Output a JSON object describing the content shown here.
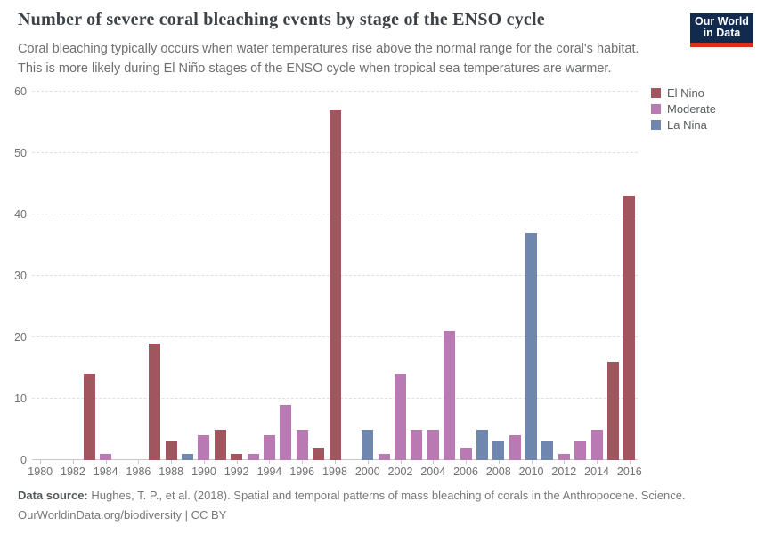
{
  "header": {
    "title": "Number of severe coral bleaching events by stage of the ENSO cycle",
    "subtitle_line1": "Coral bleaching typically occurs when water temperatures rise above the normal range for the coral's habitat.",
    "subtitle_line2": "This is more likely during El Niño stages of the ENSO cycle when tropical sea temperatures are warmer.",
    "logo": {
      "line1": "Our World",
      "line2": "in Data",
      "bg_color": "#122a4e",
      "stripe_color": "#dc2d20"
    }
  },
  "chart_data": {
    "type": "bar",
    "title": "Number of severe coral bleaching events by stage of the ENSO cycle",
    "xlabel": "",
    "ylabel": "",
    "ylim": [
      0,
      60
    ],
    "yticks": [
      0,
      10,
      20,
      30,
      40,
      50,
      60
    ],
    "xticks": [
      1980,
      1982,
      1984,
      1986,
      1988,
      1990,
      1992,
      1994,
      1996,
      1998,
      2000,
      2002,
      2004,
      2006,
      2008,
      2010,
      2012,
      2014,
      2016
    ],
    "grid": "dashed-horizontal",
    "legend_position": "top-right",
    "series_colors": {
      "El Nino": "#a1555f",
      "Moderate": "#b97ab3",
      "La Nina": "#6f86ae"
    },
    "legend": [
      {
        "label": "El Nino",
        "color": "#a1555f"
      },
      {
        "label": "Moderate",
        "color": "#b97ab3"
      },
      {
        "label": "La Nina",
        "color": "#6f86ae"
      }
    ],
    "bars": [
      {
        "year": 1980,
        "value": 0,
        "series": null
      },
      {
        "year": 1981,
        "value": 0,
        "series": null
      },
      {
        "year": 1982,
        "value": 0,
        "series": null
      },
      {
        "year": 1983,
        "value": 14,
        "series": "El Nino"
      },
      {
        "year": 1984,
        "value": 1,
        "series": "Moderate"
      },
      {
        "year": 1985,
        "value": 0,
        "series": null
      },
      {
        "year": 1986,
        "value": 0,
        "series": null
      },
      {
        "year": 1987,
        "value": 19,
        "series": "El Nino"
      },
      {
        "year": 1988,
        "value": 3,
        "series": "El Nino"
      },
      {
        "year": 1989,
        "value": 1,
        "series": "La Nina"
      },
      {
        "year": 1990,
        "value": 4,
        "series": "Moderate"
      },
      {
        "year": 1991,
        "value": 5,
        "series": "El Nino"
      },
      {
        "year": 1992,
        "value": 1,
        "series": "El Nino"
      },
      {
        "year": 1993,
        "value": 1,
        "series": "Moderate"
      },
      {
        "year": 1994,
        "value": 4,
        "series": "Moderate"
      },
      {
        "year": 1995,
        "value": 9,
        "series": "Moderate"
      },
      {
        "year": 1996,
        "value": 5,
        "series": "Moderate"
      },
      {
        "year": 1997,
        "value": 2,
        "series": "El Nino"
      },
      {
        "year": 1998,
        "value": 57,
        "series": "El Nino"
      },
      {
        "year": 1999,
        "value": 0,
        "series": null
      },
      {
        "year": 2000,
        "value": 5,
        "series": "La Nina"
      },
      {
        "year": 2001,
        "value": 1,
        "series": "Moderate"
      },
      {
        "year": 2002,
        "value": 14,
        "series": "Moderate"
      },
      {
        "year": 2003,
        "value": 5,
        "series": "Moderate"
      },
      {
        "year": 2004,
        "value": 5,
        "series": "Moderate"
      },
      {
        "year": 2005,
        "value": 21,
        "series": "Moderate"
      },
      {
        "year": 2006,
        "value": 2,
        "series": "Moderate"
      },
      {
        "year": 2007,
        "value": 5,
        "series": "La Nina"
      },
      {
        "year": 2008,
        "value": 3,
        "series": "La Nina"
      },
      {
        "year": 2009,
        "value": 4,
        "series": "Moderate"
      },
      {
        "year": 2010,
        "value": 37,
        "series": "La Nina"
      },
      {
        "year": 2011,
        "value": 3,
        "series": "La Nina"
      },
      {
        "year": 2012,
        "value": 1,
        "series": "Moderate"
      },
      {
        "year": 2013,
        "value": 3,
        "series": "Moderate"
      },
      {
        "year": 2014,
        "value": 5,
        "series": "Moderate"
      },
      {
        "year": 2015,
        "value": 16,
        "series": "El Nino"
      },
      {
        "year": 2016,
        "value": 43,
        "series": "El Nino"
      }
    ]
  },
  "footer": {
    "source_label": "Data source:",
    "source_text": " Hughes, T. P., et al. (2018). Spatial and temporal patterns of mass bleaching of corals in the Anthropocene. Science.",
    "url_text": "OurWorldinData.org/biodiversity",
    "license_text": " | CC BY"
  }
}
